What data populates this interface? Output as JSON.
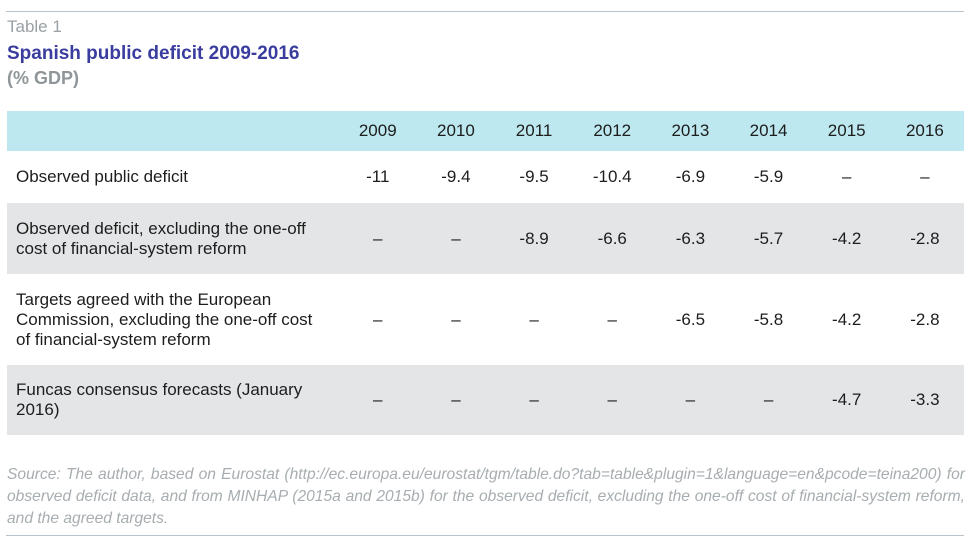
{
  "header": {
    "label": "Table 1",
    "title": "Spanish public deficit 2009-2016",
    "subtitle": "(% GDP)"
  },
  "table": {
    "columns": [
      "2009",
      "2010",
      "2011",
      "2012",
      "2013",
      "2014",
      "2015",
      "2016"
    ],
    "rows": [
      {
        "label": "Observed public deficit",
        "values": [
          "-11",
          "-9.4",
          "-9.5",
          "-10.4",
          "-6.9",
          "-5.9",
          "–",
          "–"
        ]
      },
      {
        "label": "Observed deficit, excluding the one-off cost of financial-system reform",
        "values": [
          "–",
          "–",
          "-8.9",
          "-6.6",
          "-6.3",
          "-5.7",
          "-4.2",
          "-2.8"
        ]
      },
      {
        "label": "Targets agreed with the European Commission, excluding the one-off cost of financial-system reform",
        "values": [
          "–",
          "–",
          "–",
          "–",
          "-6.5",
          "-5.8",
          "-4.2",
          "-2.8"
        ]
      },
      {
        "label": "Funcas consensus forecasts (January 2016)",
        "values": [
          "–",
          "–",
          "–",
          "–",
          "–",
          "–",
          "-4.7",
          "-3.3"
        ]
      }
    ]
  },
  "source": "Source: The author, based on Eurostat (http://ec.europa.eu/eurostat/tgm/table.do?tab=table&plugin=1&language=en&pcode=teina200) for observed deficit data, and from MINHAP (2015a and 2015b) for the observed deficit, excluding the one-off cost of financial-system reform, and the agreed targets.",
  "colors": {
    "title": "#3a3d9e",
    "header_band": "#bde8ef",
    "shaded_row": "#e3e5e6"
  }
}
